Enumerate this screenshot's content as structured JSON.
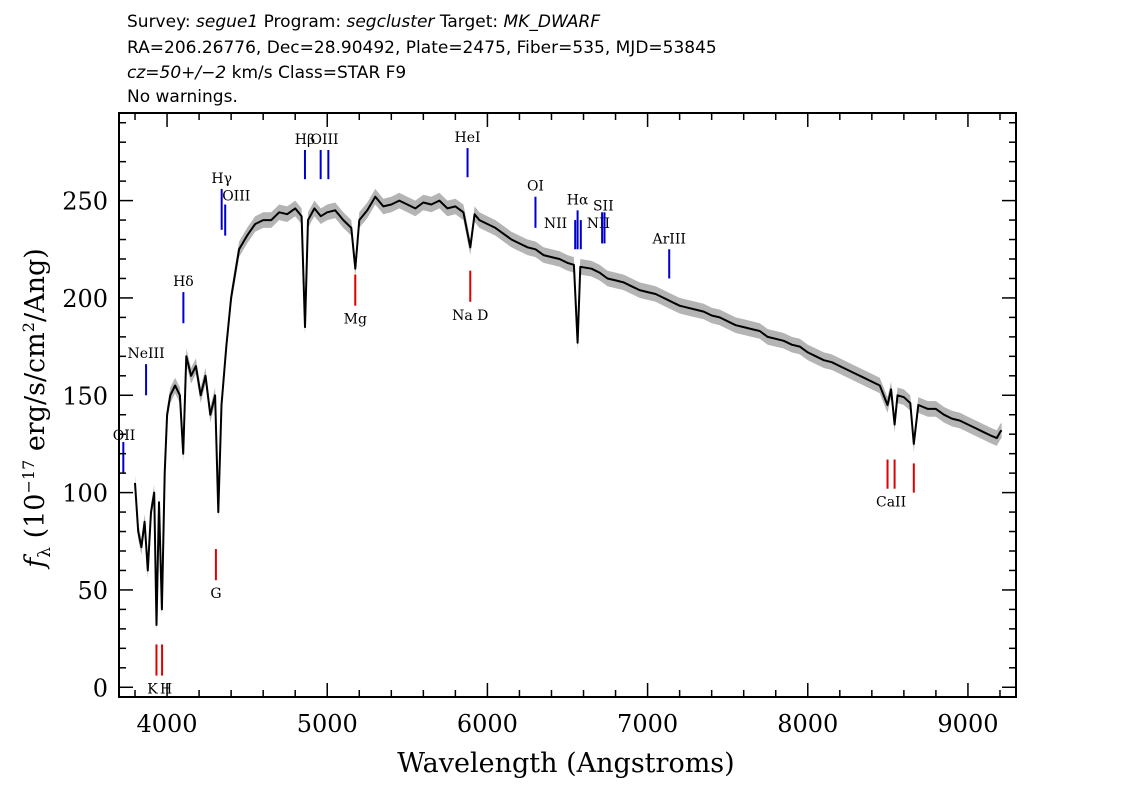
{
  "header": {
    "line1": {
      "survey_label": "Survey:",
      "survey": "segue1",
      "program_label": "Program:",
      "program": "segcluster",
      "target_label": "Target:",
      "target": "MK_DWARF"
    },
    "line2": "RA=206.26776, Dec=28.90492, Plate=2475, Fiber=535, MJD=53845",
    "line3": {
      "cz": "cz=50+/−2",
      "rest": "km/s Class=STAR F9"
    },
    "line4": "No warnings."
  },
  "colors": {
    "spectrum": "#000000",
    "error_band": "#b4b4b4",
    "emission_line": "#0000cc",
    "absorption_line": "#dd0000"
  },
  "chart_data": {
    "type": "line",
    "title": "",
    "xlabel": "Wavelength (Angstroms)",
    "ylabel": "f_λ (10^-17 erg/s/cm^2/Ang)",
    "xlim": [
      3700,
      9300
    ],
    "ylim": [
      -5,
      295
    ],
    "x_ticks": [
      4000,
      5000,
      6000,
      7000,
      8000,
      9000
    ],
    "y_ticks": [
      0,
      50,
      100,
      150,
      200,
      250
    ],
    "grid": false,
    "legend": "none",
    "series": [
      {
        "points": [
          [
            3800,
            105
          ],
          [
            3820,
            80
          ],
          [
            3840,
            72
          ],
          [
            3860,
            85
          ],
          [
            3880,
            60
          ],
          [
            3900,
            90
          ],
          [
            3920,
            100
          ],
          [
            3934,
            32
          ],
          [
            3950,
            95
          ],
          [
            3968,
            40
          ],
          [
            3985,
            110
          ],
          [
            4000,
            140
          ],
          [
            4020,
            150
          ],
          [
            4050,
            155
          ],
          [
            4080,
            150
          ],
          [
            4101,
            120
          ],
          [
            4120,
            170
          ],
          [
            4150,
            160
          ],
          [
            4180,
            165
          ],
          [
            4210,
            150
          ],
          [
            4240,
            160
          ],
          [
            4270,
            140
          ],
          [
            4300,
            150
          ],
          [
            4320,
            90
          ],
          [
            4340,
            145
          ],
          [
            4370,
            175
          ],
          [
            4400,
            200
          ],
          [
            4450,
            225
          ],
          [
            4500,
            232
          ],
          [
            4550,
            238
          ],
          [
            4600,
            240
          ],
          [
            4650,
            240
          ],
          [
            4700,
            244
          ],
          [
            4750,
            243
          ],
          [
            4800,
            246
          ],
          [
            4840,
            242
          ],
          [
            4861,
            185
          ],
          [
            4880,
            240
          ],
          [
            4920,
            246
          ],
          [
            4960,
            242
          ],
          [
            5000,
            244
          ],
          [
            5050,
            245
          ],
          [
            5100,
            240
          ],
          [
            5150,
            236
          ],
          [
            5175,
            215
          ],
          [
            5200,
            240
          ],
          [
            5250,
            245
          ],
          [
            5300,
            252
          ],
          [
            5350,
            247
          ],
          [
            5400,
            248
          ],
          [
            5450,
            250
          ],
          [
            5500,
            248
          ],
          [
            5550,
            246
          ],
          [
            5600,
            249
          ],
          [
            5650,
            248
          ],
          [
            5700,
            250
          ],
          [
            5750,
            246
          ],
          [
            5800,
            247
          ],
          [
            5850,
            244
          ],
          [
            5893,
            226
          ],
          [
            5920,
            243
          ],
          [
            5950,
            240
          ],
          [
            6000,
            238
          ],
          [
            6050,
            236
          ],
          [
            6100,
            233
          ],
          [
            6150,
            230
          ],
          [
            6200,
            228
          ],
          [
            6250,
            226
          ],
          [
            6300,
            225
          ],
          [
            6350,
            222
          ],
          [
            6400,
            221
          ],
          [
            6450,
            220
          ],
          [
            6500,
            218
          ],
          [
            6540,
            217
          ],
          [
            6563,
            177
          ],
          [
            6580,
            216
          ],
          [
            6650,
            215
          ],
          [
            6700,
            213
          ],
          [
            6750,
            210
          ],
          [
            6800,
            209
          ],
          [
            6850,
            208
          ],
          [
            6900,
            206
          ],
          [
            6950,
            204
          ],
          [
            7000,
            203
          ],
          [
            7050,
            202
          ],
          [
            7100,
            200
          ],
          [
            7150,
            198
          ],
          [
            7200,
            196
          ],
          [
            7250,
            195
          ],
          [
            7300,
            194
          ],
          [
            7350,
            193
          ],
          [
            7400,
            191
          ],
          [
            7450,
            190
          ],
          [
            7500,
            188
          ],
          [
            7550,
            186
          ],
          [
            7600,
            185
          ],
          [
            7650,
            184
          ],
          [
            7700,
            183
          ],
          [
            7750,
            180
          ],
          [
            7800,
            179
          ],
          [
            7850,
            178
          ],
          [
            7900,
            176
          ],
          [
            7950,
            175
          ],
          [
            8000,
            172
          ],
          [
            8050,
            170
          ],
          [
            8100,
            168
          ],
          [
            8150,
            167
          ],
          [
            8200,
            165
          ],
          [
            8250,
            163
          ],
          [
            8300,
            161
          ],
          [
            8350,
            159
          ],
          [
            8400,
            157
          ],
          [
            8450,
            155
          ],
          [
            8498,
            145
          ],
          [
            8520,
            153
          ],
          [
            8542,
            135
          ],
          [
            8560,
            150
          ],
          [
            8600,
            149
          ],
          [
            8640,
            146
          ],
          [
            8662,
            125
          ],
          [
            8690,
            145
          ],
          [
            8750,
            143
          ],
          [
            8800,
            143
          ],
          [
            8850,
            140
          ],
          [
            8900,
            138
          ],
          [
            8950,
            137
          ],
          [
            9000,
            135
          ],
          [
            9050,
            133
          ],
          [
            9100,
            131
          ],
          [
            9150,
            129
          ],
          [
            9180,
            128
          ],
          [
            9200,
            131
          ],
          [
            9210,
            132
          ]
        ]
      }
    ],
    "line_markers": [
      {
        "label": "NeIII",
        "kind": "emission",
        "lines": [
          3869
        ],
        "y1": 150,
        "y2": 166
      },
      {
        "label": "OII",
        "kind": "emission",
        "lines": [
          3727
        ],
        "y1": 110,
        "y2": 126
      },
      {
        "label": "Hδ",
        "kind": "emission",
        "lines": [
          4102
        ],
        "y1": 187,
        "y2": 203
      },
      {
        "label": "Hγ",
        "kind": "emission",
        "lines": [
          4341
        ],
        "y1": 235,
        "y2": 256
      },
      {
        "label": "OIII",
        "kind": "emission",
        "lines": [
          4363
        ],
        "y1": 232,
        "y2": 248
      },
      {
        "label": "Hβ",
        "kind": "emission",
        "lines": [
          4861
        ],
        "y1": 261,
        "y2": 276
      },
      {
        "label": "OIII",
        "kind": "emission",
        "lines": [
          4959,
          5007
        ],
        "y1": 261,
        "y2": 276
      },
      {
        "label": "HeI",
        "kind": "emission",
        "lines": [
          5876
        ],
        "y1": 262,
        "y2": 277
      },
      {
        "label": "OI",
        "kind": "emission",
        "lines": [
          6300
        ],
        "y1": 236,
        "y2": 252
      },
      {
        "label": "NII",
        "kind": "emission",
        "lines": [
          6548
        ],
        "y1": 225,
        "y2": 240
      },
      {
        "label": "Hα",
        "kind": "emission",
        "lines": [
          6563
        ],
        "y1": 225,
        "y2": 245
      },
      {
        "label": "NII",
        "kind": "emission",
        "lines": [
          6583
        ],
        "y1": 225,
        "y2": 240
      },
      {
        "label": "SII",
        "kind": "emission",
        "lines": [
          6716,
          6731
        ],
        "y1": 228,
        "y2": 244
      },
      {
        "label": "ArIII",
        "kind": "emission",
        "lines": [
          7135
        ],
        "y1": 210,
        "y2": 225
      },
      {
        "label": "K",
        "kind": "absorption",
        "lines": [
          3934
        ],
        "y1": 6,
        "y2": 22
      },
      {
        "label": "H",
        "kind": "absorption",
        "lines": [
          3969
        ],
        "y1": 6,
        "y2": 22
      },
      {
        "label": "G",
        "kind": "absorption",
        "lines": [
          4305
        ],
        "y1": 55,
        "y2": 71
      },
      {
        "label": "Mg",
        "kind": "absorption",
        "lines": [
          5175
        ],
        "y1": 196,
        "y2": 212
      },
      {
        "label": "Na D",
        "kind": "absorption",
        "lines": [
          5893
        ],
        "y1": 198,
        "y2": 214
      },
      {
        "label": "CaII",
        "kind": "absorption",
        "lines": [
          8498,
          8542
        ],
        "y1": 102,
        "y2": 117
      },
      {
        "label": "",
        "kind": "absorption",
        "lines": [
          8662
        ],
        "y1": 100,
        "y2": 115
      }
    ]
  }
}
